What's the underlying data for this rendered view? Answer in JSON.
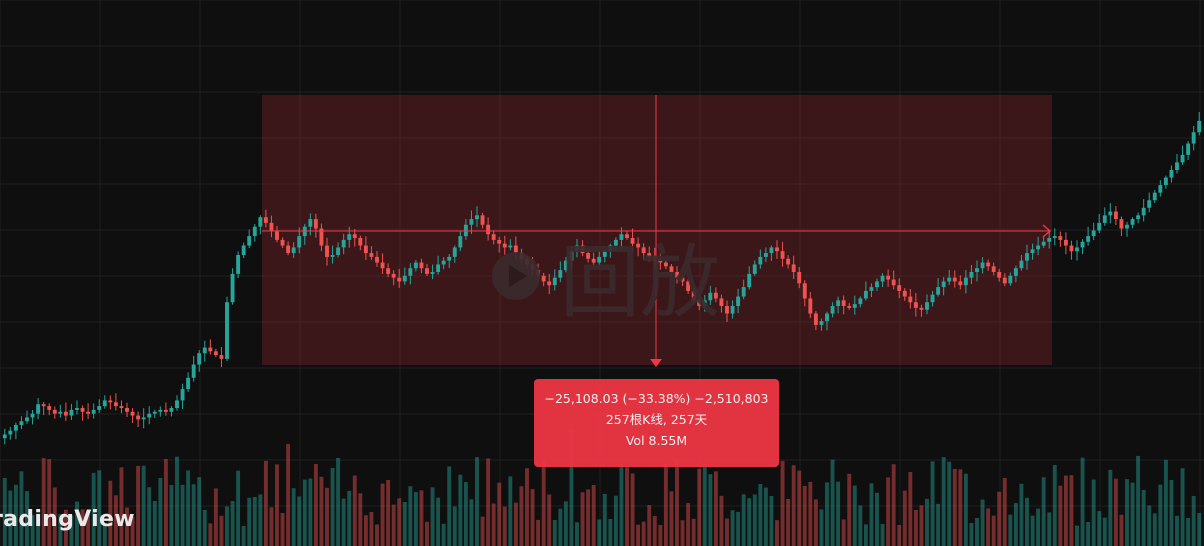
{
  "app": {
    "brand": "radingView"
  },
  "watermark": {
    "icon": "play-circle-icon",
    "text": "回放"
  },
  "measure": {
    "change_line": "−25,108.03 (−33.38%) −2,510,803",
    "bars_line": "257根K线, 257天",
    "volume_line": "Vol 8.55M"
  },
  "colors": {
    "background": "#0f0f0f",
    "up": "#26a69a",
    "down": "#ef5350",
    "measure_fill": "#f23645",
    "grid": "#1f1f1f"
  },
  "chart_data": {
    "type": "candlestick",
    "series_note": "",
    "closes": [
      100,
      102,
      105,
      107,
      109,
      111,
      116,
      115,
      113,
      111,
      112,
      110,
      113,
      114,
      112,
      111,
      113,
      115,
      118,
      117,
      115,
      114,
      112,
      110,
      108,
      109,
      111,
      112,
      113,
      112,
      114,
      118,
      124,
      130,
      137,
      143,
      146,
      144,
      142,
      140,
      170,
      185,
      195,
      200,
      205,
      210,
      215,
      212,
      208,
      203,
      200,
      196,
      199,
      205,
      210,
      214,
      209,
      200,
      194,
      195,
      199,
      203,
      206,
      204,
      200,
      196,
      194,
      191,
      188,
      185,
      183,
      181,
      184,
      188,
      191,
      188,
      185,
      186,
      190,
      192,
      194,
      199,
      205,
      211,
      214,
      216,
      211,
      206,
      203,
      201,
      199,
      200,
      196,
      193,
      190,
      187,
      184,
      181,
      179,
      183,
      187,
      192,
      197,
      200,
      196,
      193,
      191,
      194,
      197,
      200,
      203,
      206,
      204,
      201,
      199,
      196,
      194,
      192,
      191,
      189,
      186,
      183,
      181,
      176,
      171,
      168,
      171,
      175,
      172,
      168,
      164,
      168,
      173,
      178,
      185,
      190,
      194,
      196,
      199,
      197,
      193,
      190,
      186,
      180,
      172,
      164,
      158,
      160,
      164,
      168,
      171,
      168,
      167,
      169,
      172,
      176,
      178,
      181,
      184,
      182,
      179,
      176,
      173,
      170,
      167,
      166,
      170,
      174,
      178,
      181,
      183,
      181,
      179,
      183,
      186,
      188,
      191,
      189,
      186,
      183,
      180,
      184,
      188,
      192,
      196,
      198,
      200,
      202,
      204,
      205,
      203,
      200,
      197,
      199,
      202,
      205,
      208,
      212,
      216,
      218,
      214,
      209,
      211,
      214,
      216,
      220,
      224,
      228,
      232,
      236,
      240,
      244,
      248,
      254,
      260,
      266
    ],
    "price_range": [
      60,
      330
    ]
  }
}
